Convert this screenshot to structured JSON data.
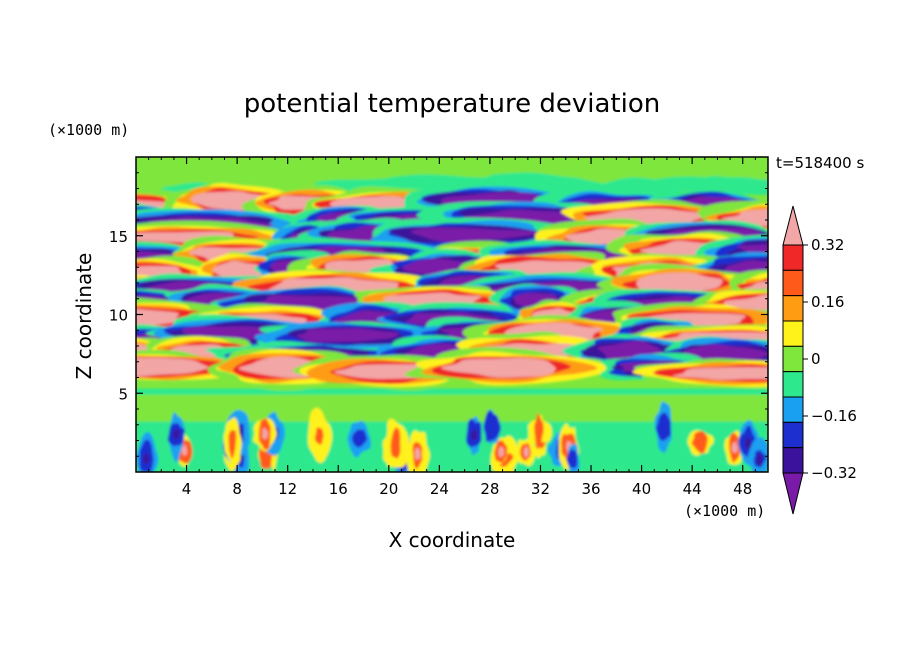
{
  "chart_data": {
    "type": "heatmap",
    "title": "potential temperature deviation",
    "xlabel": "X coordinate",
    "ylabel": "Z coordinate",
    "x_unit": "(×1000 m)",
    "y_unit": "(×1000 m)",
    "time_label": "t=518400 s",
    "xlim": [
      0,
      50
    ],
    "ylim": [
      0,
      20
    ],
    "x_ticks": [
      4,
      8,
      12,
      16,
      20,
      24,
      28,
      32,
      36,
      40,
      44,
      48
    ],
    "y_ticks": [
      5,
      10,
      15
    ],
    "colorbar": {
      "levels": [
        -0.4,
        -0.32,
        -0.24,
        -0.16,
        -0.08,
        0,
        0.08,
        0.16,
        0.24,
        0.32,
        0.4
      ],
      "tick_labels": [
        "0.32",
        "0.16",
        "0",
        "−0.16",
        "−0.32"
      ],
      "tick_values": [
        0.32,
        0.16,
        0,
        -0.16,
        -0.32
      ],
      "colors": [
        "#7a1aa8",
        "#3a129b",
        "#1e2fd0",
        "#1aa0f0",
        "#2ee88e",
        "#7fe63c",
        "#fff21a",
        "#ff9c12",
        "#ff5a1a",
        "#f02828",
        "#f2a6a6"
      ]
    },
    "description_layers": {
      "upper_band_z": [
        5,
        18
      ],
      "mixed_layer_z": [
        0,
        5.2
      ]
    }
  }
}
